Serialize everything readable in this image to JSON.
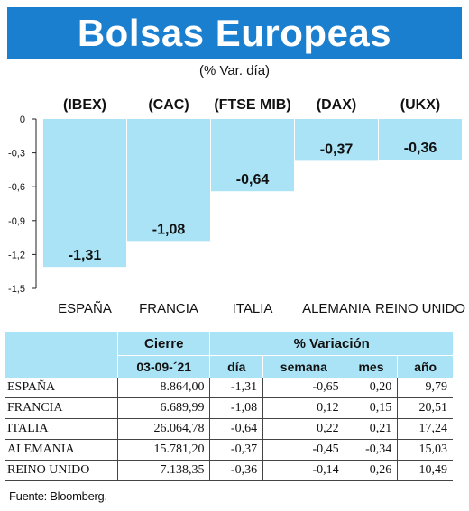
{
  "header": {
    "title": "Bolsas Europeas",
    "subtitle": "(% Var. día)"
  },
  "colors": {
    "title_bg": "#1b7fd0",
    "bar": "#a9e3f5",
    "table_header_bg": "#a9e3f5"
  },
  "chart_data": {
    "type": "bar",
    "title": "Bolsas Europeas",
    "subtitle": "(% Var. día)",
    "categories": [
      "ESPAÑA",
      "FRANCIA",
      "ITALIA",
      "ALEMANIA",
      "REINO UNIDO"
    ],
    "indices": [
      "(IBEX)",
      "(CAC)",
      "(FTSE MIB)",
      "(DAX)",
      "(UKX)"
    ],
    "values": [
      -1.31,
      -1.08,
      -0.64,
      -0.37,
      -0.36
    ],
    "value_labels": [
      "-1,31",
      "-1,08",
      "-0,64",
      "-0,37",
      "-0,36"
    ],
    "yticks": [
      "0",
      "-0,3",
      "-0,6",
      "-0,9",
      "-1,2",
      "-1,5"
    ],
    "ytick_values": [
      0,
      -0.3,
      -0.6,
      -0.9,
      -1.2,
      -1.5
    ],
    "ylim": [
      -1.5,
      0
    ],
    "grid": false
  },
  "table": {
    "group_headers": {
      "cierre": "Cierre",
      "variacion": "% Variación"
    },
    "sub_headers": {
      "date": "03-09-´21",
      "dia": "día",
      "semana": "semana",
      "mes": "mes",
      "anio": "año"
    },
    "rows": [
      {
        "name": "ESPAÑA",
        "cierre": "8.864,00",
        "dia": "-1,31",
        "semana": "-0,65",
        "mes": "0,20",
        "anio": "9,79"
      },
      {
        "name": "FRANCIA",
        "cierre": "6.689,99",
        "dia": "-1,08",
        "semana": "0,12",
        "mes": "0,15",
        "anio": "20,51"
      },
      {
        "name": "ITALIA",
        "cierre": "26.064,78",
        "dia": "-0,64",
        "semana": "0,22",
        "mes": "0,21",
        "anio": "17,24"
      },
      {
        "name": "ALEMANIA",
        "cierre": "15.781,20",
        "dia": "-0,37",
        "semana": "-0,45",
        "mes": "-0,34",
        "anio": "15,03"
      },
      {
        "name": "REINO UNIDO",
        "cierre": "7.138,35",
        "dia": "-0,36",
        "semana": "-0,14",
        "mes": "0,26",
        "anio": "10,49"
      }
    ]
  },
  "footer": {
    "source": "Fuente: Bloomberg."
  }
}
